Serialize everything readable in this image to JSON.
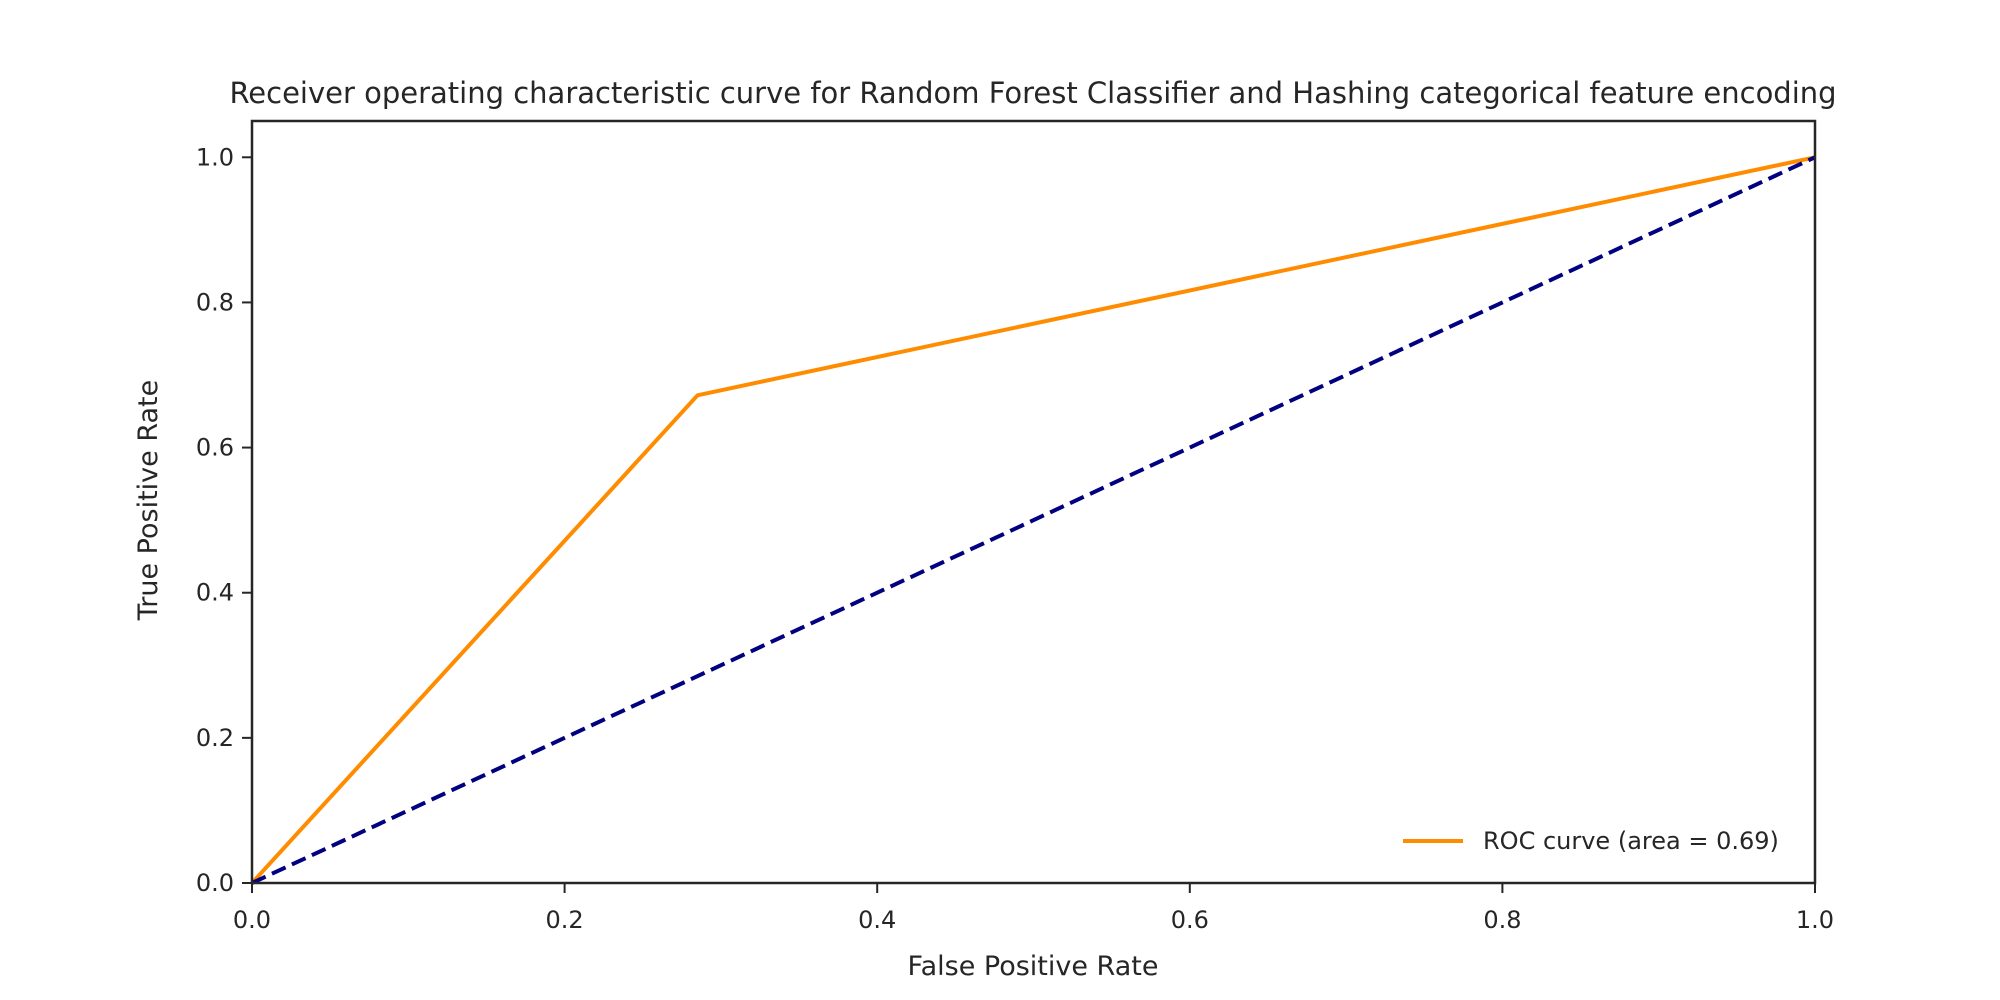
{
  "chart_data": {
    "type": "line",
    "title": "Receiver operating characteristic curve for Random Forest Classifier and Hashing categorical feature encoding",
    "xlabel": "False Positive Rate",
    "ylabel": "True Positive Rate",
    "xlim": [
      0.0,
      1.0
    ],
    "ylim": [
      0.0,
      1.05
    ],
    "xticks": [
      "0.0",
      "0.2",
      "0.4",
      "0.6",
      "0.8",
      "1.0"
    ],
    "yticks": [
      "0.0",
      "0.2",
      "0.4",
      "0.6",
      "0.8",
      "1.0"
    ],
    "grid": false,
    "legend_position": "lower-right",
    "series": [
      {
        "name": "ROC curve (area = 0.69)",
        "color": "#ff8c00",
        "style": "solid",
        "x": [
          0.0,
          0.285,
          1.0
        ],
        "y": [
          0.0,
          0.672,
          1.0
        ]
      },
      {
        "color": "#000080",
        "style": "dashed",
        "x": [
          0.0,
          1.0
        ],
        "y": [
          0.0,
          1.0
        ]
      }
    ]
  }
}
